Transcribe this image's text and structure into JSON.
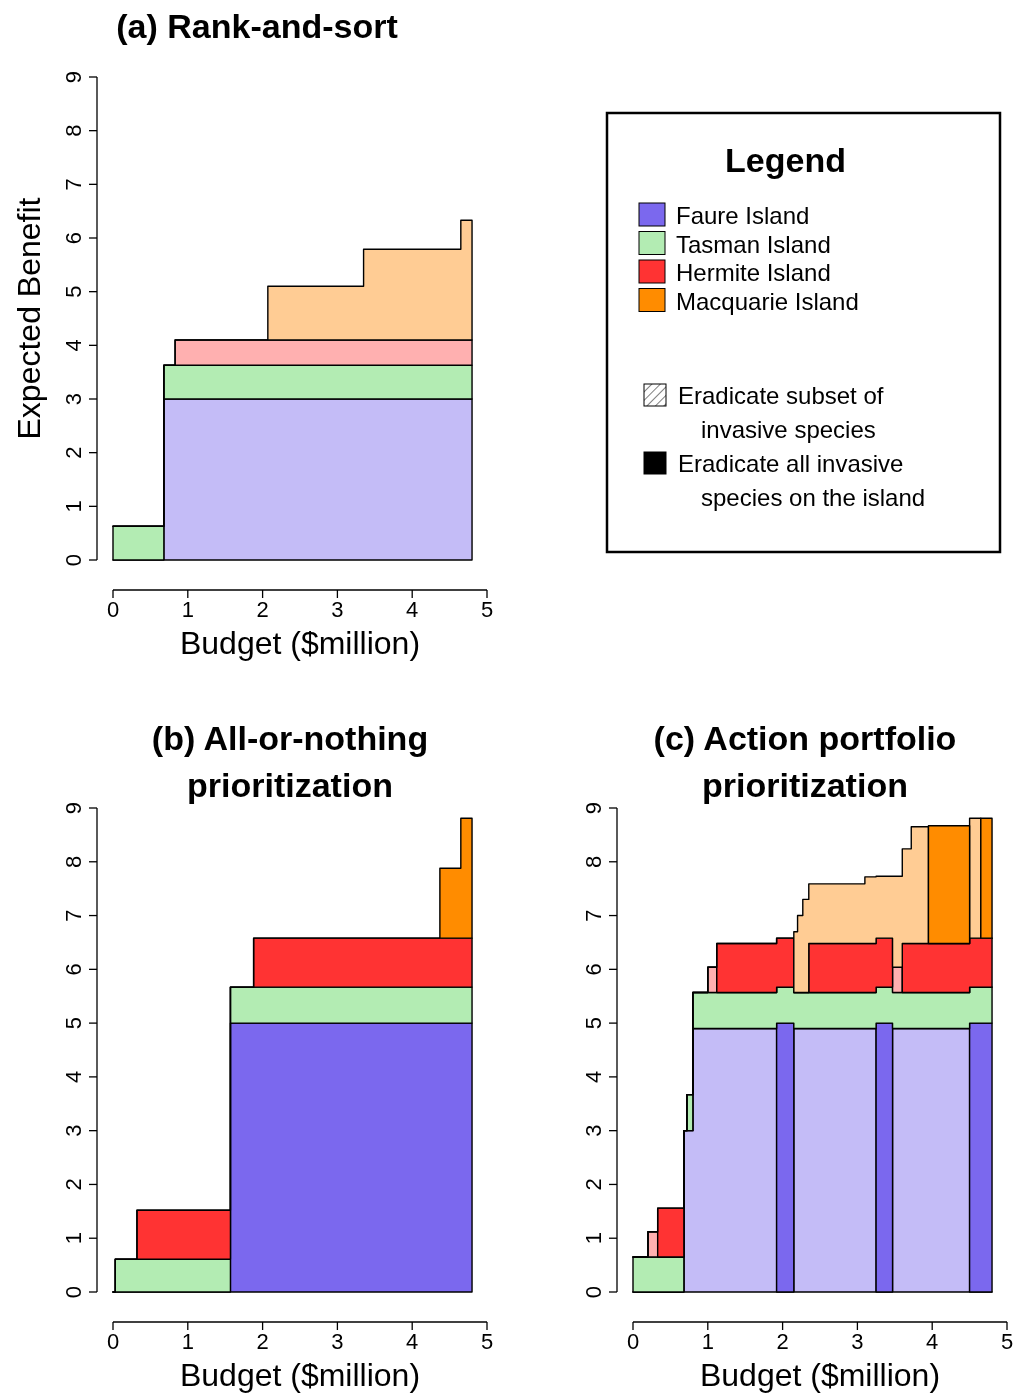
{
  "chart_data": [
    {
      "type": "area",
      "stacked": true,
      "title": "(a) Rank-and-sort",
      "xlabel": "Budget ($million)",
      "ylabel": "Expected Benefit",
      "xlim": [
        0,
        5
      ],
      "ylim": [
        0,
        9
      ],
      "xticks": [
        0,
        1,
        2,
        3,
        4,
        5
      ],
      "yticks": [
        0,
        1,
        2,
        3,
        4,
        5,
        6,
        7,
        8,
        9
      ],
      "x": [
        0,
        0.68,
        0.68,
        0.83,
        0.83,
        2.07,
        2.07,
        3.35,
        3.35,
        4.65,
        4.65,
        4.8
      ],
      "series": [
        {
          "color": "#c4bcf7",
          "values": [
            0,
            0,
            3,
            3,
            3,
            3,
            3,
            3,
            3,
            3,
            3,
            3
          ]
        },
        {
          "color": "#b3ecb3",
          "values": [
            0.63,
            0.63,
            0.63,
            0.63,
            0.63,
            0.63,
            0.63,
            0.63,
            0.63,
            0.63,
            0.63,
            0.63
          ]
        },
        {
          "color": "#ffb0b0",
          "values": [
            0,
            0,
            0,
            0,
            0.47,
            0.47,
            0.47,
            0.47,
            0.47,
            0.47,
            0.47,
            0.47
          ]
        },
        {
          "color": "#ffcc94",
          "values": [
            0,
            0,
            0,
            0,
            0,
            0,
            1,
            1,
            1.69,
            1.69,
            2.23,
            2.23
          ]
        }
      ]
    },
    {
      "type": "other",
      "title": "Legend",
      "categories": [
        "Faure Island",
        "Tasman Island",
        "Hermite Island",
        "Macquarie Island"
      ],
      "colors": [
        "#7b68ee",
        "#b3ecb3",
        "#ff3333",
        "#ff8c00"
      ],
      "annotations": [
        "Eradicate subset of invasive species",
        "Eradicate all invasive species on the island"
      ]
    },
    {
      "type": "area",
      "stacked": true,
      "title": "(b) All-or-nothing prioritization",
      "xlabel": "Budget ($million)",
      "xlim": [
        0,
        5
      ],
      "ylim": [
        0,
        9
      ],
      "xticks": [
        0,
        1,
        2,
        3,
        4,
        5
      ],
      "yticks": [
        0,
        1,
        2,
        3,
        4,
        5,
        6,
        7,
        8,
        9
      ],
      "x": [
        0,
        0.03,
        0.03,
        0.32,
        0.32,
        1.57,
        1.57,
        1.88,
        1.88,
        4.37,
        4.37,
        4.65,
        4.65,
        4.8
      ],
      "series": [
        {
          "color": "#7b68ee",
          "values": [
            0,
            0,
            0,
            0,
            0,
            0,
            5,
            5,
            5,
            5,
            5,
            5,
            5,
            5
          ]
        },
        {
          "color": "#b3ecb3",
          "values": [
            0,
            0,
            0.61,
            0.61,
            0.61,
            0.61,
            0.67,
            0.67,
            0.67,
            0.67,
            0.67,
            0.67,
            0.67,
            0.67
          ]
        },
        {
          "color": "#ff3333",
          "values": [
            0,
            0,
            0,
            0,
            0.91,
            0.91,
            0,
            0,
            0.91,
            0.91,
            0.91,
            0.91,
            0.91,
            0.91
          ]
        },
        {
          "color": "#ff8c00",
          "values": [
            0,
            0,
            0,
            0,
            0,
            0,
            0,
            0,
            0,
            0,
            1.3,
            1.3,
            2.23,
            2.23
          ]
        }
      ]
    },
    {
      "type": "area",
      "stacked": true,
      "title": "(c) Action portfolio prioritization",
      "xlabel": "Budget ($million)",
      "xlim": [
        0,
        5
      ],
      "ylim": [
        0,
        9
      ],
      "xticks": [
        0,
        1,
        2,
        3,
        4,
        5
      ],
      "yticks": [
        0,
        1,
        2,
        3,
        4,
        5,
        6,
        7,
        8,
        9
      ],
      "x": [
        0,
        0.2,
        0.2,
        0.33,
        0.33,
        0.68,
        0.68,
        0.72,
        0.72,
        0.8,
        0.8,
        1.0,
        1.0,
        1.12,
        1.12,
        1.92,
        1.92,
        2.15,
        2.15,
        2.2,
        2.2,
        2.27,
        2.27,
        2.35,
        2.35,
        3.1,
        3.1,
        3.25,
        3.25,
        3.47,
        3.47,
        3.6,
        3.6,
        3.72,
        3.72,
        3.95,
        3.95,
        4.5,
        4.5,
        4.65,
        4.65,
        4.8
      ],
      "series": [
        {
          "color": "#c4bcf7",
          "values": [
            0,
            0,
            0,
            0,
            0,
            0,
            3,
            3,
            3,
            3,
            4.9,
            4.9,
            4.9,
            4.9,
            4.9,
            4.9,
            0,
            0,
            4.9,
            4.9,
            4.9,
            4.9,
            4.9,
            4.9,
            4.9,
            4.9,
            4.9,
            4.9,
            0,
            0,
            4.9,
            4.9,
            4.9,
            4.9,
            4.9,
            4.9,
            4.9,
            4.9,
            0,
            0,
            0,
            0
          ]
        },
        {
          "color": "#7b68ee",
          "values": [
            0,
            0,
            0,
            0,
            0,
            0,
            0,
            0,
            0,
            0,
            0,
            0,
            0,
            0,
            0,
            0,
            5,
            5,
            0,
            0,
            0,
            0,
            0,
            0,
            0,
            0,
            0,
            0,
            5,
            5,
            0,
            0,
            0,
            0,
            0,
            0,
            0,
            0,
            5,
            5,
            5,
            5
          ]
        },
        {
          "color": "#b3ecb3",
          "values": [
            0.65,
            0.65,
            0.65,
            0.65,
            0.65,
            0.65,
            0,
            0,
            0.67,
            0.67,
            0.67,
            0.67,
            0.67,
            0.67,
            0.67,
            0.67,
            0.67,
            0.67,
            0.67,
            0.67,
            0.67,
            0.67,
            0.67,
            0.67,
            0.67,
            0.67,
            0.67,
            0.67,
            0.67,
            0.67,
            0.67,
            0.67,
            0.67,
            0.67,
            0.67,
            0.67,
            0.67,
            0.67,
            0.67,
            0.67,
            0.67,
            0.67
          ]
        },
        {
          "color": "#ffb0b0",
          "values": [
            0,
            0,
            0.47,
            0.47,
            0,
            0,
            0,
            0,
            0,
            0,
            0,
            0,
            0.47,
            0.47,
            0,
            0,
            0,
            0,
            0,
            0,
            0,
            0,
            0,
            0,
            0,
            0,
            0,
            0,
            0,
            0,
            0.47,
            0.47,
            0,
            0,
            0,
            0,
            0,
            0,
            0,
            0,
            0,
            0
          ]
        },
        {
          "color": "#ff3333",
          "values": [
            0,
            0,
            0,
            0,
            0.91,
            0.91,
            0,
            0,
            0,
            0,
            0,
            0,
            0,
            0,
            0.91,
            0.91,
            0.91,
            0.91,
            0,
            0,
            0,
            0,
            0,
            0,
            0.91,
            0.91,
            0.91,
            0.91,
            0.91,
            0.91,
            0,
            0,
            0.91,
            0.91,
            0.91,
            0.91,
            0.91,
            0.91,
            0.91,
            0.91,
            0.91,
            0.91
          ]
        },
        {
          "color": "#ffcc94",
          "values": [
            0,
            0,
            0,
            0,
            0,
            0,
            0,
            0,
            0,
            0,
            0,
            0,
            0,
            0,
            0,
            0,
            0,
            0,
            1.13,
            1.13,
            1.43,
            1.43,
            1.73,
            1.73,
            1.11,
            1.11,
            1.24,
            1.24,
            1.15,
            1.15,
            1.69,
            1.69,
            1.76,
            1.76,
            2.17,
            2.17,
            0,
            0,
            2.23,
            2.23,
            0,
            0
          ]
        },
        {
          "color": "#ff8c00",
          "values": [
            null,
            null,
            null,
            null,
            null,
            null,
            null,
            null,
            null,
            null,
            null,
            null,
            null,
            null,
            null,
            null,
            null,
            null,
            null,
            null,
            null,
            null,
            null,
            null,
            null,
            null,
            null,
            null,
            null,
            null,
            null,
            null,
            null,
            null,
            null,
            null,
            2.19,
            2.19,
            null,
            null,
            2.23,
            2.23
          ]
        }
      ]
    }
  ]
}
